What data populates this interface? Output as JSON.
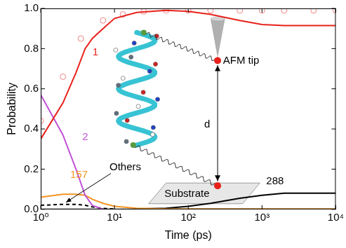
{
  "chart_data": {
    "type": "line",
    "xlabel": "Time (ps)",
    "ylabel": "Probability",
    "log": "x",
    "grid": false,
    "xlim": [
      1,
      10000
    ],
    "xticks": [
      {
        "value": 1,
        "label": "10⁰"
      },
      {
        "value": 10,
        "label": "10¹"
      },
      {
        "value": 100,
        "label": "10²"
      },
      {
        "value": 1000,
        "label": "10³"
      },
      {
        "value": 10000,
        "label": "10⁴"
      }
    ],
    "ylim": [
      0,
      1
    ],
    "yticks": [
      {
        "value": 0,
        "label": "0.0"
      },
      0.2,
      0.4,
      0.6,
      0.8,
      {
        "value": 1,
        "label": "1.0"
      }
    ],
    "x": [
      1,
      2,
      3,
      4,
      5,
      7,
      10,
      20,
      50,
      100,
      200,
      500,
      1000,
      2000,
      5000,
      10000
    ],
    "series": [
      {
        "name": "1",
        "color": "#e8211b",
        "marker": "none",
        "line_style": "solid",
        "values": [
          0.35,
          0.53,
          0.68,
          0.8,
          0.85,
          0.9,
          0.95,
          0.98,
          0.99,
          0.985,
          0.97,
          0.94,
          0.92,
          0.915,
          0.915,
          0.915
        ]
      },
      {
        "name": "2",
        "color": "#c052d6",
        "marker": "none",
        "line_style": "solid",
        "values": [
          0.57,
          0.37,
          0.2,
          0.07,
          0.02,
          0.0,
          null,
          null,
          null,
          null,
          null,
          null,
          null,
          null,
          null,
          null
        ]
      },
      {
        "name": "157",
        "color": "#f39422",
        "marker": "none",
        "line_style": "solid",
        "values": [
          0.06,
          0.075,
          0.075,
          0.07,
          0.05,
          0.03,
          0.015,
          0.005,
          0.002,
          0.002,
          0.002,
          0.002,
          0.002,
          0.002,
          0.002,
          0.002
        ]
      },
      {
        "name": "288",
        "color": "#000000",
        "marker": "none",
        "line_style": "solid",
        "values": [
          null,
          null,
          null,
          null,
          null,
          null,
          null,
          0.002,
          0.005,
          0.015,
          0.03,
          0.055,
          0.07,
          0.08,
          0.08,
          0.08
        ]
      },
      {
        "name": "Others",
        "color": "#000000",
        "marker": "none",
        "line_style": "dashed",
        "values": [
          0.02,
          0.025,
          0.025,
          0.02,
          0.012,
          0.005,
          0.002,
          null,
          null,
          null,
          null,
          null,
          null,
          null,
          null,
          null
        ]
      },
      {
        "type": "scatter",
        "color": "#f08080",
        "marker": "circle_open",
        "x": [
          1,
          2,
          3.5,
          7,
          13,
          25,
          50,
          100,
          200,
          500,
          1000,
          2000,
          5000,
          10000
        ],
        "values": [
          0.44,
          0.66,
          0.85,
          0.94,
          0.97,
          0.985,
          0.99,
          0.99,
          0.99,
          0.99,
          0.99,
          0.99,
          0.99,
          0.99
        ]
      }
    ],
    "annotations": [
      {
        "text": "1",
        "x": 5.5,
        "y": 0.78,
        "color": "#e8211b"
      },
      {
        "text": "2",
        "x": 4,
        "y": 0.36,
        "color": "#c052d6"
      },
      {
        "text": "157",
        "x": 3.3,
        "y": 0.17,
        "color": "#f39422"
      },
      {
        "text": "288",
        "x": 1500,
        "y": 0.14,
        "color": "#000000"
      },
      {
        "text": "Others",
        "x": 14,
        "y": 0.21,
        "color": "#000000",
        "arrow": {
          "x": 2.2,
          "y": 0.035
        }
      },
      {
        "text": "AFM tip",
        "x": 521,
        "y": 0.74,
        "color": "#000000"
      },
      {
        "text": "d",
        "x": 180,
        "y": 0.42,
        "color": "#000000"
      },
      {
        "text": "Substrate",
        "x": 96,
        "y": 0.076,
        "color": "#000000"
      }
    ]
  }
}
